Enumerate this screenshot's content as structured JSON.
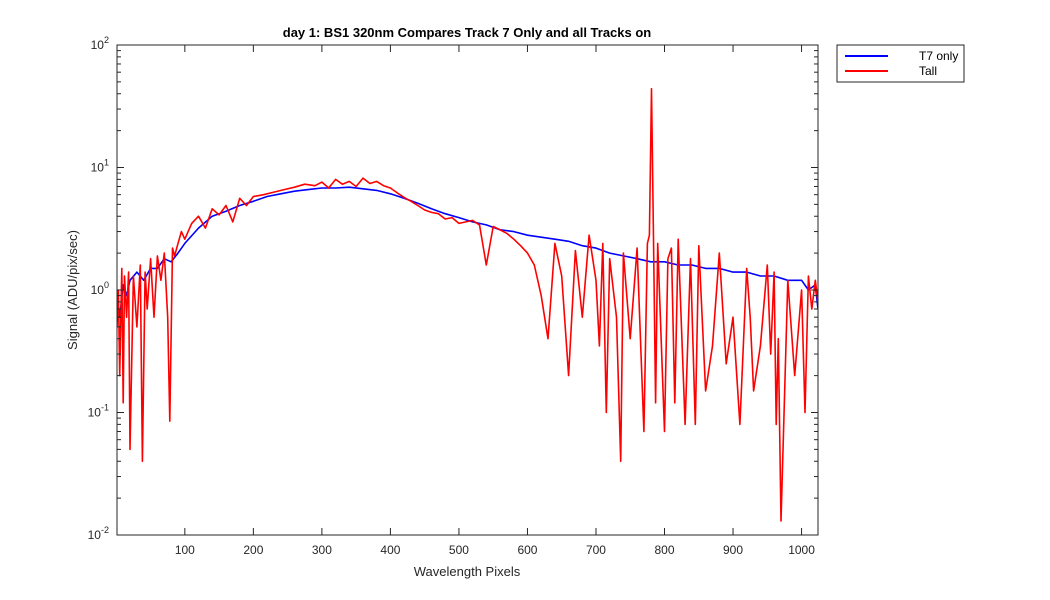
{
  "chart_data": {
    "type": "line",
    "title": "day 1: BS1  320nm  Compares Track 7 Only and all Tracks on",
    "xlabel": "Wavelength Pixels",
    "ylabel": "Signal (ADU/pix/sec)",
    "xlim": [
      1,
      1024
    ],
    "ylim": [
      0.01,
      100
    ],
    "yscale": "log",
    "grid": false,
    "legend_position": "outside-top-right",
    "x_ticks": [
      100,
      200,
      300,
      400,
      500,
      600,
      700,
      800,
      900,
      1000
    ],
    "y_ticks": [
      {
        "value": 0.01,
        "base": "10",
        "exp": "-2"
      },
      {
        "value": 0.1,
        "base": "10",
        "exp": "-1"
      },
      {
        "value": 1,
        "base": "10",
        "exp": "0"
      },
      {
        "value": 10,
        "base": "10",
        "exp": "1"
      },
      {
        "value": 100,
        "base": "10",
        "exp": "2"
      }
    ],
    "series": [
      {
        "name": "T7 only",
        "color": "#0000ff",
        "x": [
          1,
          5,
          10,
          15,
          20,
          30,
          40,
          50,
          60,
          70,
          80,
          90,
          100,
          120,
          140,
          160,
          180,
          200,
          220,
          240,
          260,
          280,
          300,
          320,
          340,
          360,
          380,
          400,
          420,
          440,
          460,
          480,
          500,
          520,
          540,
          560,
          580,
          600,
          620,
          640,
          660,
          680,
          700,
          720,
          740,
          760,
          780,
          800,
          820,
          840,
          860,
          880,
          900,
          920,
          940,
          960,
          980,
          1000,
          1010,
          1020,
          1024
        ],
        "y": [
          0.9,
          0.6,
          1.1,
          0.9,
          1.2,
          1.4,
          1.2,
          1.5,
          1.5,
          1.8,
          1.7,
          2.0,
          2.4,
          3.2,
          4.0,
          4.4,
          4.9,
          5.3,
          5.8,
          6.1,
          6.4,
          6.6,
          6.8,
          6.8,
          6.9,
          6.7,
          6.5,
          6.1,
          5.6,
          5.1,
          4.6,
          4.2,
          3.9,
          3.6,
          3.4,
          3.1,
          3.0,
          2.8,
          2.7,
          2.6,
          2.5,
          2.3,
          2.2,
          2.0,
          1.9,
          1.8,
          1.7,
          1.7,
          1.6,
          1.6,
          1.5,
          1.5,
          1.4,
          1.4,
          1.3,
          1.3,
          1.2,
          1.2,
          1.0,
          1.1,
          0.7
        ]
      },
      {
        "name": "Tall",
        "color": "#ff0000",
        "x": [
          1,
          3,
          5,
          8,
          10,
          12,
          15,
          18,
          20,
          25,
          30,
          35,
          38,
          42,
          45,
          50,
          55,
          60,
          65,
          70,
          75,
          78,
          82,
          85,
          90,
          95,
          100,
          110,
          120,
          130,
          140,
          150,
          160,
          170,
          180,
          190,
          200,
          215,
          230,
          245,
          260,
          275,
          290,
          300,
          310,
          320,
          330,
          340,
          350,
          360,
          370,
          380,
          390,
          400,
          410,
          420,
          430,
          440,
          450,
          460,
          470,
          480,
          490,
          500,
          510,
          520,
          530,
          540,
          550,
          560,
          570,
          580,
          590,
          600,
          610,
          620,
          630,
          640,
          650,
          660,
          670,
          680,
          690,
          700,
          705,
          710,
          715,
          720,
          730,
          736,
          740,
          750,
          760,
          770,
          775,
          778,
          781,
          784,
          787,
          790,
          800,
          805,
          810,
          815,
          820,
          830,
          838,
          845,
          850,
          860,
          870,
          880,
          890,
          900,
          910,
          920,
          925,
          930,
          940,
          950,
          955,
          960,
          963,
          966,
          970,
          980,
          990,
          1000,
          1005,
          1010,
          1015,
          1020,
          1024
        ],
        "y": [
          0.5,
          1.0,
          0.2,
          1.5,
          0.12,
          1.3,
          0.6,
          1.4,
          0.05,
          1.3,
          0.5,
          1.6,
          0.04,
          1.4,
          0.7,
          1.8,
          0.6,
          1.9,
          1.2,
          2.0,
          0.6,
          0.085,
          2.2,
          1.9,
          2.4,
          3.0,
          2.6,
          3.5,
          4.0,
          3.2,
          4.6,
          4.1,
          4.9,
          3.6,
          5.6,
          4.9,
          5.8,
          6.0,
          6.3,
          6.6,
          6.9,
          7.3,
          7.1,
          7.6,
          6.8,
          8.0,
          7.3,
          7.7,
          7.0,
          8.2,
          7.4,
          7.7,
          7.1,
          6.8,
          6.2,
          5.7,
          5.3,
          4.9,
          4.5,
          4.3,
          4.2,
          3.8,
          3.9,
          3.5,
          3.6,
          3.7,
          3.4,
          1.6,
          3.3,
          3.1,
          2.9,
          2.6,
          2.3,
          2.0,
          1.6,
          0.9,
          0.4,
          2.4,
          1.3,
          0.2,
          2.1,
          0.6,
          2.8,
          1.2,
          0.35,
          2.4,
          0.1,
          1.8,
          0.6,
          0.04,
          2.0,
          0.4,
          2.2,
          0.07,
          2.4,
          2.8,
          44,
          2.6,
          0.12,
          2.4,
          0.07,
          1.8,
          2.2,
          0.12,
          2.6,
          0.08,
          1.8,
          0.08,
          2.3,
          0.15,
          0.35,
          2.0,
          0.25,
          0.6,
          0.08,
          1.5,
          0.6,
          0.15,
          0.35,
          1.6,
          0.3,
          1.4,
          0.08,
          0.4,
          0.013,
          1.2,
          0.2,
          1.0,
          0.1,
          1.3,
          0.7,
          1.2,
          0.8
        ]
      }
    ]
  }
}
